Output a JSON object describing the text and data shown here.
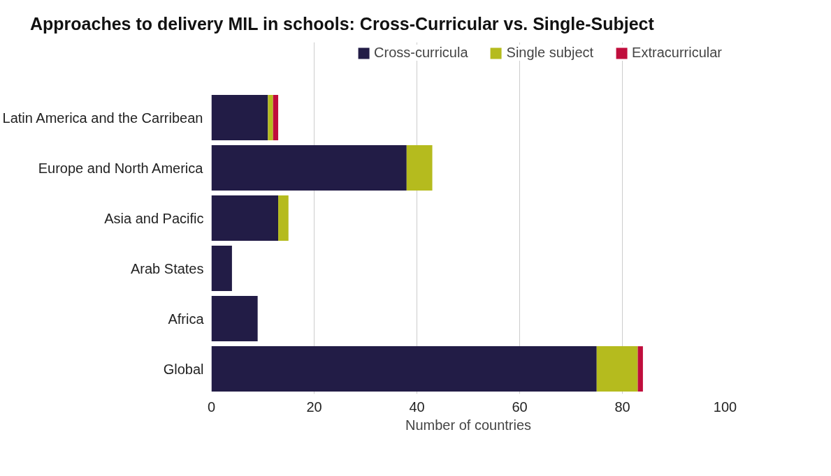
{
  "chart_data": {
    "type": "bar",
    "orientation": "horizontal",
    "stacked": true,
    "title": "Approaches to delivery MIL in schools: Cross-Curricular vs. Single-Subject",
    "xlabel": "Number of countries",
    "categories": [
      "Latin America and the Carribean",
      "Europe and North America",
      "Asia and Pacific",
      "Arab States",
      "Africa",
      "Global"
    ],
    "series": [
      {
        "name": "Cross-curricula",
        "color": "#221c46",
        "values": [
          11,
          38,
          13,
          4,
          9,
          75
        ]
      },
      {
        "name": "Single subject",
        "color": "#b5bb1e",
        "values": [
          1,
          5,
          2,
          0,
          0,
          8
        ]
      },
      {
        "name": "Extracurricular",
        "color": "#c00d3c",
        "values": [
          1,
          0,
          0,
          0,
          0,
          1
        ]
      }
    ],
    "xlim": [
      0,
      100
    ],
    "xticks": [
      0,
      20,
      40,
      60,
      80,
      100
    ],
    "grid": "x",
    "legend": "top"
  }
}
